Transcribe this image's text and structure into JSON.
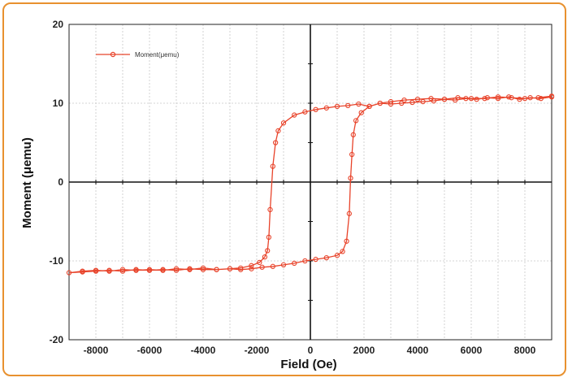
{
  "chart_data": {
    "type": "scatter",
    "xlabel": "Field (Oe)",
    "ylabel": "Moment (μemu)",
    "xlim": [
      -9000,
      9000
    ],
    "ylim": [
      -20,
      20
    ],
    "x_ticks": [
      -8000,
      -6000,
      -4000,
      -2000,
      0,
      2000,
      4000,
      6000,
      8000
    ],
    "y_ticks": [
      -20,
      -10,
      0,
      10,
      20
    ],
    "grid": true,
    "legend_position": "top-left",
    "series": [
      {
        "name": "Moment(μemu)",
        "color": "#e8432a",
        "x": [
          9000,
          8600,
          8200,
          7800,
          7400,
          7000,
          6600,
          6200,
          5800,
          5400,
          5000,
          4600,
          4200,
          3800,
          3400,
          3000,
          2600,
          2200,
          1800,
          1400,
          1000,
          600,
          200,
          -200,
          -600,
          -1000,
          -1200,
          -1300,
          -1400,
          -1500,
          -1550,
          -1600,
          -1700,
          -1900,
          -2200,
          -2600,
          -3000,
          -3500,
          -4000,
          -4500,
          -5000,
          -5500,
          -6000,
          -6500,
          -7000,
          -7500,
          -8000,
          -8500,
          -9000,
          -8500,
          -8000,
          -7500,
          -7000,
          -6500,
          -6000,
          -5500,
          -5000,
          -4500,
          -4000,
          -3500,
          -3000,
          -2600,
          -2200,
          -1800,
          -1400,
          -1000,
          -600,
          -200,
          200,
          600,
          1000,
          1200,
          1350,
          1450,
          1500,
          1550,
          1600,
          1700,
          1900,
          2200,
          2600,
          3000,
          3500,
          4000,
          4500,
          5000,
          5500,
          6000,
          6500,
          7000,
          7500,
          8000,
          8500,
          9000
        ],
        "y": [
          10.8,
          10.6,
          10.7,
          10.5,
          10.8,
          10.6,
          10.7,
          10.5,
          10.6,
          10.4,
          10.5,
          10.3,
          10.2,
          10.1,
          10.0,
          9.9,
          10.0,
          9.6,
          9.9,
          9.7,
          9.6,
          9.4,
          9.2,
          8.9,
          8.5,
          7.5,
          6.5,
          5.0,
          2.0,
          -3.5,
          -7.0,
          -8.7,
          -9.5,
          -10.2,
          -10.6,
          -10.9,
          -11.0,
          -11.1,
          -11.1,
          -11.0,
          -11.2,
          -11.1,
          -11.2,
          -11.1,
          -11.3,
          -11.2,
          -11.3,
          -11.4,
          -11.5,
          -11.3,
          -11.2,
          -11.3,
          -11.1,
          -11.2,
          -11.1,
          -11.2,
          -11.0,
          -11.1,
          -10.9,
          -11.1,
          -11.0,
          -11.1,
          -11.0,
          -10.8,
          -10.7,
          -10.5,
          -10.3,
          -10.0,
          -9.8,
          -9.6,
          -9.3,
          -8.8,
          -7.5,
          -4.0,
          0.5,
          3.5,
          6.0,
          7.8,
          8.8,
          9.6,
          10.0,
          10.2,
          10.4,
          10.5,
          10.6,
          10.5,
          10.7,
          10.6,
          10.6,
          10.8,
          10.7,
          10.6,
          10.7,
          10.9
        ]
      }
    ]
  }
}
